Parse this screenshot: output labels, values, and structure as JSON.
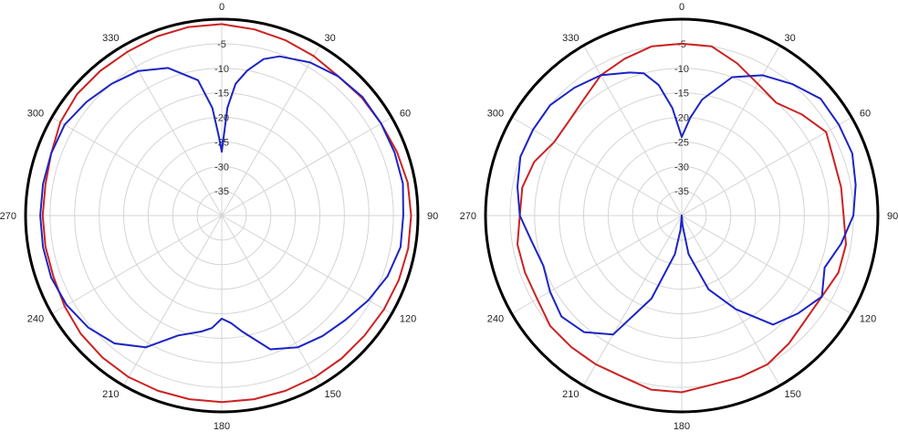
{
  "chart_data": [
    {
      "type": "polar-line",
      "title": "",
      "theta_unit": "degrees",
      "theta_direction": "clockwise",
      "theta_zero": "top",
      "angle_ticks": [
        "0",
        "30",
        "60",
        "90",
        "120",
        "150",
        "180",
        "210",
        "240",
        "270",
        "300",
        "330"
      ],
      "radial_ticks": [
        "-5",
        "-10",
        "-15",
        "-20",
        "-25",
        "-30",
        "-35"
      ],
      "radial_range": [
        -40,
        0
      ],
      "grid": true,
      "series": [
        {
          "color": "#cc2222",
          "theta": [
            0,
            10,
            20,
            30,
            40,
            50,
            60,
            70,
            80,
            90,
            100,
            110,
            120,
            130,
            140,
            150,
            160,
            170,
            180,
            190,
            200,
            210,
            220,
            230,
            240,
            250,
            260,
            270,
            280,
            290,
            300,
            310,
            320,
            330,
            340,
            350
          ],
          "values": [
            -1,
            -1.5,
            -2,
            -2.5,
            -3,
            -2.7,
            -2.5,
            -2,
            -1.5,
            -1.4,
            -1.4,
            -1.6,
            -1.8,
            -2,
            -2,
            -2,
            -2,
            -2,
            -2,
            -2,
            -2,
            -2,
            -2.2,
            -2.5,
            -3,
            -3.5,
            -3.5,
            -3.5,
            -3.5,
            -3,
            -2,
            -1.5,
            -1.5,
            -1.5,
            -1.2,
            -1
          ],
          "unit_closure": true
        },
        {
          "color": "#1c24c4",
          "theta": [
            0,
            3,
            6,
            10,
            15,
            20,
            30,
            40,
            50,
            60,
            70,
            80,
            90,
            100,
            110,
            120,
            130,
            140,
            150,
            160,
            170,
            175,
            180,
            185,
            190,
            200,
            210,
            220,
            230,
            240,
            250,
            260,
            270,
            280,
            290,
            300,
            310,
            320,
            330,
            340,
            350,
            355,
            358
          ],
          "values": [
            -27,
            -18,
            -13,
            -10,
            -7,
            -5.5,
            -4,
            -3,
            -2.5,
            -2.5,
            -2.5,
            -2.5,
            -3,
            -3,
            -4,
            -5.5,
            -7,
            -8,
            -9,
            -11,
            -16,
            -18,
            -19,
            -17,
            -16,
            -14,
            -9,
            -6,
            -4.5,
            -3.5,
            -3,
            -3,
            -3,
            -3,
            -3,
            -3,
            -4,
            -5,
            -6,
            -8,
            -12,
            -18,
            -24
          ]
        }
      ]
    },
    {
      "type": "polar-line",
      "title": "",
      "theta_unit": "degrees",
      "theta_direction": "clockwise",
      "theta_zero": "top",
      "angle_ticks": [
        "0",
        "30",
        "60",
        "90",
        "120",
        "150",
        "180",
        "210",
        "240",
        "270",
        "300",
        "330"
      ],
      "radial_ticks": [
        "-5",
        "-10",
        "-15",
        "-20",
        "-25",
        "-30",
        "-35"
      ],
      "radial_range": [
        -40,
        0
      ],
      "grid": true,
      "series": [
        {
          "color": "#cc2222",
          "theta": [
            0,
            10,
            20,
            30,
            40,
            50,
            60,
            70,
            80,
            90,
            100,
            110,
            120,
            130,
            140,
            150,
            160,
            170,
            180,
            190,
            200,
            210,
            220,
            230,
            240,
            250,
            260,
            270,
            280,
            290,
            300,
            310,
            320,
            330,
            340,
            350
          ],
          "values": [
            -5,
            -5,
            -7,
            -9,
            -10,
            -8,
            -6,
            -7,
            -7,
            -7,
            -6,
            -6,
            -7,
            -7,
            -6,
            -5,
            -5,
            -5,
            -4,
            -4,
            -5,
            -5,
            -5,
            -5,
            -6,
            -6,
            -6,
            -7,
            -7,
            -8,
            -10,
            -10,
            -9,
            -7,
            -6,
            -5
          ],
          "unit_closure": true
        },
        {
          "color": "#1c24c4",
          "theta": [
            0,
            5,
            10,
            20,
            30,
            40,
            50,
            60,
            70,
            80,
            90,
            100,
            110,
            120,
            130,
            140,
            150,
            160,
            170,
            175,
            178,
            180,
            182,
            185,
            190,
            200,
            210,
            220,
            230,
            240,
            250,
            260,
            270,
            280,
            290,
            300,
            310,
            320,
            330,
            340,
            345,
            350,
            355,
            358
          ],
          "values": [
            -24,
            -20,
            -16,
            -10,
            -7,
            -5,
            -3,
            -3,
            -3,
            -4,
            -5,
            -7,
            -9,
            -7,
            -9,
            -11,
            -18,
            -24,
            -32,
            -38,
            -40,
            -40,
            -40,
            -37,
            -32,
            -22,
            -12,
            -9,
            -8,
            -9,
            -10,
            -9,
            -7,
            -6,
            -5,
            -5,
            -5,
            -6,
            -7,
            -9,
            -10,
            -13,
            -18,
            -22
          ]
        }
      ]
    }
  ]
}
